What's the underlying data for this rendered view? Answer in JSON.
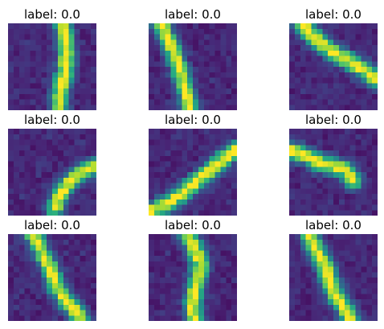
{
  "chart_data": {
    "type": "heatmap",
    "colormap": "viridis",
    "panels": [
      {
        "title": "label: 0.0",
        "pattern": "vertical-curve-left",
        "intensity": "bright stroke on dark purple background"
      },
      {
        "title": "label: 0.0",
        "pattern": "diagonal-down-right",
        "intensity": "bright stroke on dark purple background"
      },
      {
        "title": "label: 0.0",
        "pattern": "diagonal-down-right-wide",
        "intensity": "bright stroke on dark purple background"
      },
      {
        "title": "label: 0.0",
        "pattern": "diagonal-up-right-short",
        "intensity": "bright stroke on dark purple background"
      },
      {
        "title": "label: 0.0",
        "pattern": "diagonal-up-right-long",
        "intensity": "bright stroke on dark purple background"
      },
      {
        "title": "label: 0.0",
        "pattern": "hook-down-right",
        "intensity": "bright stroke on dark purple background"
      },
      {
        "title": "label: 0.0",
        "pattern": "diagonal-down-right-steep",
        "intensity": "bright stroke on dark purple background"
      },
      {
        "title": "label: 0.0",
        "pattern": "s-curve-vertical",
        "intensity": "bright stroke on dark purple background"
      },
      {
        "title": "label: 0.0",
        "pattern": "diagonal-down-right-steep-2",
        "intensity": "bright stroke on dark purple background"
      }
    ]
  },
  "colors": {
    "background": "#ffffff",
    "text": "#000000"
  }
}
